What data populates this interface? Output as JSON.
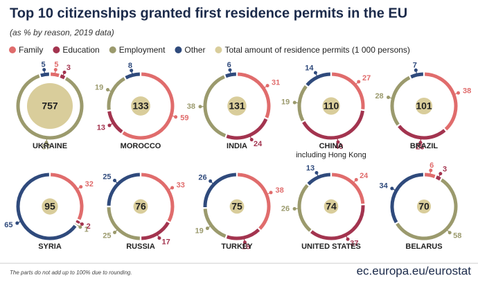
{
  "title": "Top 10 citizenships granted first residence permits in the EU",
  "subtitle": "(as % by reason, 2019 data)",
  "legend": {
    "series": [
      {
        "name": "Family",
        "color": "#e06c6c"
      },
      {
        "name": "Education",
        "color": "#a3344f"
      },
      {
        "name": "Employment",
        "color": "#9b9a6d"
      },
      {
        "name": "Other",
        "color": "#2f4a7c"
      }
    ],
    "total_label": "Total amount of residence permits (1 000 persons)",
    "total_color": "#d9cd9b"
  },
  "chart_data": [
    {
      "type": "donut",
      "title": "UKRAINE",
      "total": 757,
      "values": [
        5,
        3,
        87,
        5
      ]
    },
    {
      "type": "donut",
      "title": "MOROCCO",
      "total": 133,
      "values": [
        59,
        13,
        19,
        8
      ]
    },
    {
      "type": "donut",
      "title": "INDIA",
      "total": 131,
      "values": [
        31,
        24,
        38,
        6
      ]
    },
    {
      "type": "donut",
      "title": "CHINA",
      "subtitle": "including Hong Kong",
      "total": 110,
      "values": [
        27,
        40,
        19,
        14
      ]
    },
    {
      "type": "donut",
      "title": "BRAZIL",
      "total": 101,
      "values": [
        38,
        26,
        28,
        7
      ]
    },
    {
      "type": "donut",
      "title": "SYRIA",
      "total": 95,
      "values": [
        32,
        2,
        1,
        65
      ]
    },
    {
      "type": "donut",
      "title": "RUSSIA",
      "total": 76,
      "values": [
        33,
        17,
        25,
        25
      ]
    },
    {
      "type": "donut",
      "title": "TURKEY",
      "total": 75,
      "values": [
        38,
        18,
        19,
        26
      ]
    },
    {
      "type": "donut",
      "title": "UNITED STATES",
      "total": 74,
      "values": [
        24,
        37,
        26,
        13
      ]
    },
    {
      "type": "donut",
      "title": "BELARUS",
      "total": 70,
      "values": [
        6,
        3,
        58,
        34
      ]
    }
  ],
  "note": "The parts do not add up to 100% due to rounding.",
  "source": "ec.europa.eu/eurostat"
}
